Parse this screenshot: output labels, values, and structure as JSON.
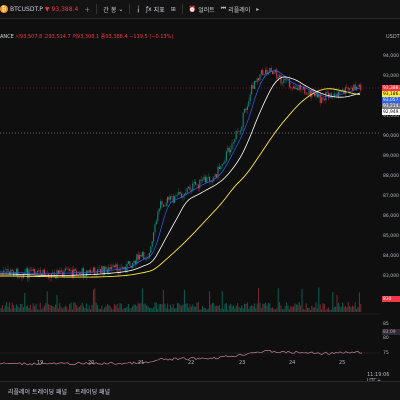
{
  "toolbar": {
    "symbol": "BTCUSDT.P",
    "price": "93,388.4",
    "interval": "간",
    "interval_suffix": "봉",
    "indicators_label": "지표",
    "alert_label": "얼러트",
    "replay_label": "리플레이"
  },
  "legend": {
    "exchange": "ANCE",
    "values": "시93,507.8 고93,514.7 저93,308.1 종93,388.4 −119.5 (−0.13%)"
  },
  "price_axis": {
    "currency": "USDT",
    "labels": [
      "94,000",
      "93,000",
      "92,000",
      "91,000",
      "90,000",
      "89,000",
      "88,000",
      "87,000",
      "86,000",
      "85,000",
      "84,000",
      "83,000"
    ],
    "tags": [
      {
        "text": "93,388.4",
        "color": "#f23645"
      },
      {
        "text": "93,186.4",
        "color": "#ffeb3b"
      },
      {
        "text": "93,057.2",
        "color": "#2962ff"
      },
      {
        "text": "93,214.5",
        "color": "#787b86"
      },
      {
        "text": "92,949.2",
        "color": "#ffffff"
      }
    ],
    "volume_tag": "830",
    "osc_labels": [
      "85",
      "80",
      "75"
    ],
    "osc_tag": "83.09"
  },
  "time_axis": {
    "labels": [
      "19",
      "20",
      "21",
      "22",
      "23",
      "24",
      "25"
    ]
  },
  "clock": "11:19:06 UTC+",
  "bottom_tabs": [
    "리플레이 트레이딩 패널",
    "트레이딩 패널"
  ]
}
